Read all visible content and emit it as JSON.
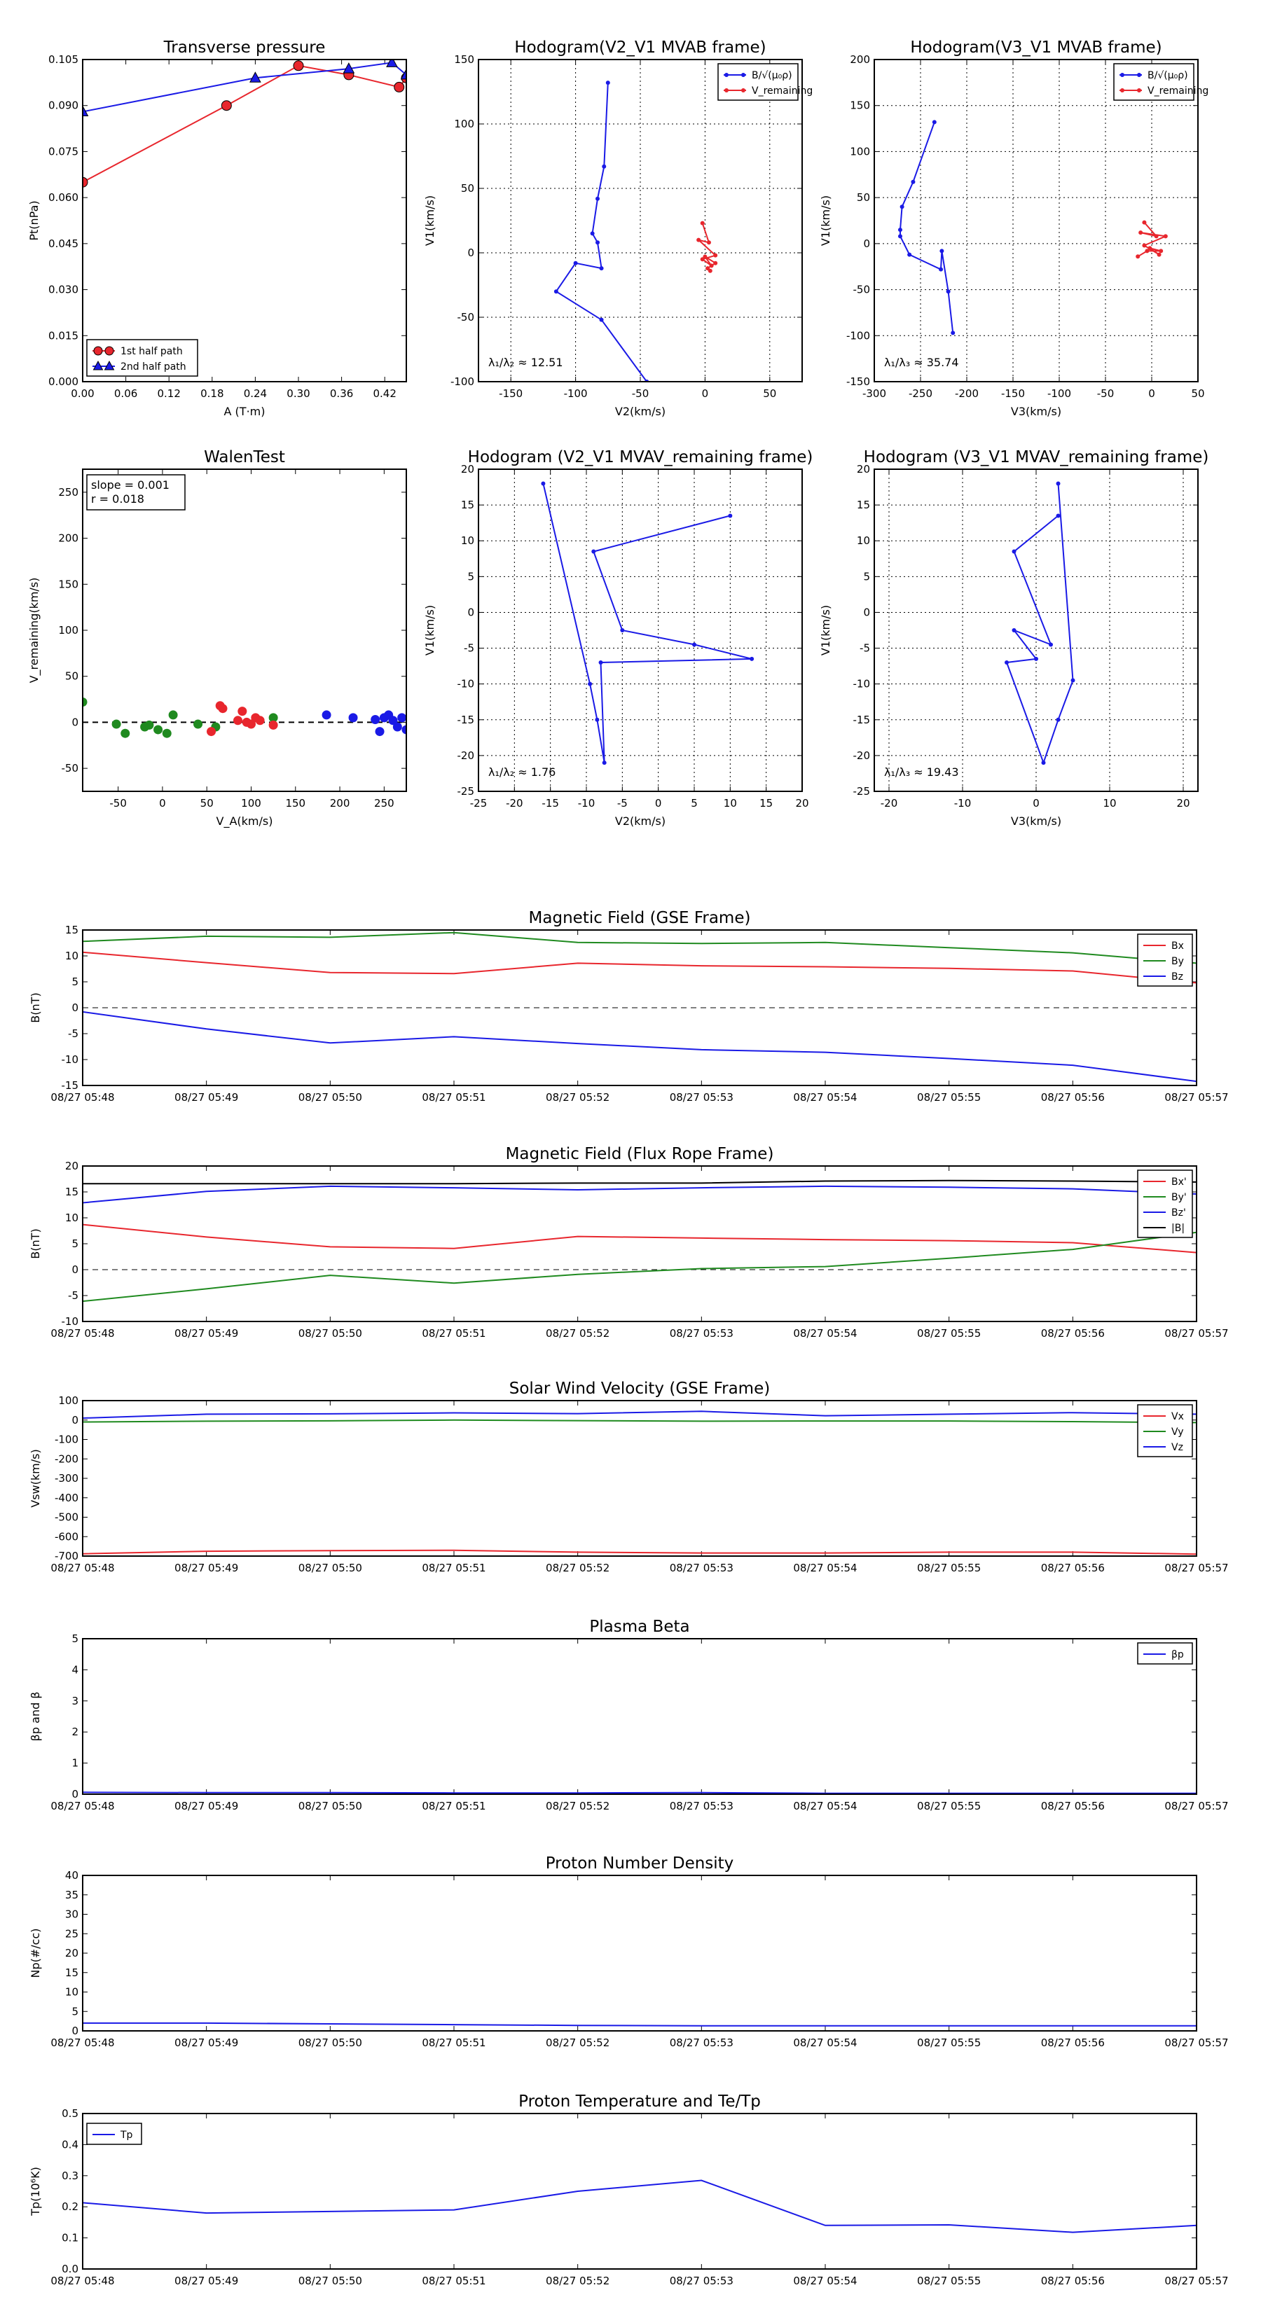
{
  "colors": {
    "red": "#e8262d",
    "blue": "#1a1ae6",
    "green": "#1f8a1f",
    "black": "#000000",
    "grid": "#000000"
  },
  "chart_data": [
    {
      "id": "transverse",
      "type": "line",
      "title": "Transverse pressure",
      "xlabel": "A (T·m)",
      "ylabel": "Pt(nPa)",
      "xlim": [
        0.0,
        0.45
      ],
      "ylim": [
        0.0,
        0.105
      ],
      "xticks": [
        0.0,
        0.06,
        0.12,
        0.18,
        0.24,
        0.3,
        0.36,
        0.42
      ],
      "xtick_labels": [
        "0.00",
        "0.06",
        "0.12",
        "0.18",
        "0.24",
        "0.30",
        "0.36",
        "0.42"
      ],
      "yticks": [
        0.0,
        0.015,
        0.03,
        0.045,
        0.06,
        0.075,
        0.09,
        0.105
      ],
      "ytick_labels": [
        "0.000",
        "0.015",
        "0.030",
        "0.045",
        "0.060",
        "0.075",
        "0.090",
        "0.105"
      ],
      "legend": {
        "position": "bottom-left"
      },
      "series": [
        {
          "name": "1st half path",
          "color": "red",
          "marker": "circle",
          "x": [
            0.0,
            0.2,
            0.3,
            0.37,
            0.44,
            0.45
          ],
          "y": [
            0.065,
            0.09,
            0.103,
            0.1,
            0.096,
            0.099
          ]
        },
        {
          "name": "2nd half path",
          "color": "blue",
          "marker": "triangle",
          "x": [
            0.0,
            0.24,
            0.37,
            0.43,
            0.45
          ],
          "y": [
            0.088,
            0.099,
            0.102,
            0.104,
            0.1
          ]
        }
      ]
    },
    {
      "id": "hodo1",
      "type": "line",
      "title": "Hodogram(V2_V1 MVAB frame)",
      "xlabel": "V2(km/s)",
      "ylabel": "V1(km/s)",
      "xlim": [
        -175,
        75
      ],
      "ylim": [
        -100,
        150
      ],
      "xticks": [
        -150,
        -100,
        -50,
        0,
        50
      ],
      "yticks": [
        -100,
        -50,
        0,
        50,
        100,
        150
      ],
      "grid": true,
      "annotation": "λ₁/λ₂ ≈ 12.51",
      "legend": {
        "position": "top-right"
      },
      "series": [
        {
          "name": "B/√(μ₀ρ)",
          "color": "blue",
          "x": [
            -75,
            -78,
            -83,
            -87,
            -83,
            -80,
            -100,
            -115,
            -80,
            -45
          ],
          "y": [
            132,
            67,
            42,
            15,
            8,
            -12,
            -8,
            -30,
            -52,
            -100
          ]
        },
        {
          "name": "V_remaining",
          "color": "red",
          "x": [
            -2,
            3,
            -5,
            8,
            -2,
            5,
            0,
            8,
            2,
            4
          ],
          "y": [
            23,
            8,
            10,
            -2,
            -5,
            -10,
            -3,
            -8,
            -12,
            -14
          ]
        }
      ]
    },
    {
      "id": "hodo2",
      "type": "line",
      "title": "Hodogram(V3_V1 MVAB frame)",
      "xlabel": "V3(km/s)",
      "ylabel": "V1(km/s)",
      "xlim": [
        -300,
        50
      ],
      "ylim": [
        -150,
        200
      ],
      "xticks": [
        -300,
        -250,
        -200,
        -150,
        -100,
        -50,
        0,
        50
      ],
      "yticks": [
        -150,
        -100,
        -50,
        0,
        50,
        100,
        150,
        200
      ],
      "grid": true,
      "annotation": "λ₁/λ₃ ≈ 35.74",
      "legend": {
        "position": "top-right"
      },
      "series": [
        {
          "name": "B/√(μ₀ρ)",
          "color": "blue",
          "x": [
            -235,
            -258,
            -270,
            -272,
            -272,
            -262,
            -228,
            -227,
            -220,
            -215
          ],
          "y": [
            132,
            67,
            40,
            15,
            8,
            -12,
            -28,
            -8,
            -52,
            -97
          ]
        },
        {
          "name": "V_remaining",
          "color": "red",
          "x": [
            -8,
            5,
            -12,
            15,
            -8,
            8,
            -2,
            10,
            -5,
            -15
          ],
          "y": [
            23,
            8,
            12,
            8,
            -2,
            -12,
            -5,
            -8,
            -8,
            -14
          ]
        }
      ]
    },
    {
      "id": "walen",
      "type": "scatter",
      "title": "WalenTest",
      "xlabel": "V_A(km/s)",
      "ylabel": "V_remaining(km/s)",
      "xlim": [
        -90,
        275
      ],
      "ylim": [
        -75,
        275
      ],
      "xticks": [
        -50,
        0,
        50,
        100,
        150,
        200,
        250
      ],
      "yticks": [
        -50,
        0,
        50,
        100,
        150,
        200,
        250
      ],
      "annotation_lines": [
        "slope = 0.001",
        "r = 0.018"
      ],
      "series": [
        {
          "name": "green",
          "color": "green",
          "x": [
            -90,
            -52,
            -42,
            -20,
            -15,
            -5,
            5,
            12,
            40,
            60,
            125
          ],
          "y": [
            22,
            -2,
            -12,
            -5,
            -3,
            -8,
            -12,
            8,
            -2,
            -5,
            5
          ]
        },
        {
          "name": "red",
          "color": "red",
          "x": [
            55,
            65,
            68,
            85,
            90,
            95,
            100,
            105,
            110,
            125
          ],
          "y": [
            -10,
            18,
            15,
            2,
            12,
            0,
            -2,
            5,
            2,
            -3
          ]
        },
        {
          "name": "blue",
          "color": "blue",
          "x": [
            185,
            215,
            240,
            245,
            250,
            255,
            260,
            265,
            270,
            275
          ],
          "y": [
            8,
            5,
            3,
            -10,
            5,
            8,
            2,
            -5,
            5,
            -8
          ]
        }
      ],
      "reference_line": 0
    },
    {
      "id": "hodo3",
      "type": "line",
      "title": "Hodogram (V2_V1 MVAV_remaining frame)",
      "xlabel": "V2(km/s)",
      "ylabel": "V1(km/s)",
      "xlim": [
        -25,
        20
      ],
      "ylim": [
        -25,
        20
      ],
      "xticks": [
        -25,
        -20,
        -15,
        -10,
        -5,
        0,
        5,
        10,
        15,
        20
      ],
      "yticks": [
        -25,
        -20,
        -15,
        -10,
        -5,
        0,
        5,
        10,
        15,
        20
      ],
      "grid": true,
      "annotation": "λ₁/λ₂ ≈ 1.76",
      "series": [
        {
          "name": "path",
          "color": "blue",
          "x": [
            -16,
            -9.5,
            -8.5,
            -7.5,
            -8,
            13,
            5,
            -5,
            -9,
            10
          ],
          "y": [
            18,
            -10,
            -15,
            -21,
            -7,
            -6.5,
            -4.5,
            -2.5,
            8.5,
            13.5
          ]
        }
      ]
    },
    {
      "id": "hodo4",
      "type": "line",
      "title": "Hodogram (V3_V1 MVAV_remaining frame)",
      "xlabel": "V3(km/s)",
      "ylabel": "V1(km/s)",
      "xlim": [
        -22,
        22
      ],
      "ylim": [
        -25,
        20
      ],
      "xticks": [
        -20,
        -10,
        0,
        10,
        20
      ],
      "yticks": [
        -25,
        -20,
        -15,
        -10,
        -5,
        0,
        5,
        10,
        15,
        20
      ],
      "grid": true,
      "annotation": "λ₁/λ₃ ≈ 19.43",
      "series": [
        {
          "name": "path",
          "color": "blue",
          "x": [
            3,
            5,
            3,
            1,
            -4,
            0,
            -3,
            2,
            -3,
            3
          ],
          "y": [
            18,
            -9.5,
            -15,
            -21,
            -7,
            -6.5,
            -2.5,
            -4.5,
            8.5,
            13.5
          ]
        }
      ]
    },
    {
      "id": "mag_gse",
      "type": "line",
      "title": "Magnetic Field (GSE Frame)",
      "ylabel": "B(nT)",
      "ylim": [
        -15,
        15
      ],
      "yticks": [
        -15,
        -10,
        -5,
        0,
        5,
        10,
        15
      ],
      "xtick_labels": [
        "08/27 05:48",
        "08/27 05:49",
        "08/27 05:50",
        "08/27 05:51",
        "08/27 05:52",
        "08/27 05:53",
        "08/27 05:54",
        "08/27 05:55",
        "08/27 05:56",
        "08/27 05:57"
      ],
      "reference_line": 0,
      "legend": {
        "position": "top-right"
      },
      "series": [
        {
          "name": "Bx",
          "color": "red",
          "y": [
            10.7,
            8.7,
            6.8,
            6.6,
            8.6,
            8.1,
            7.9,
            7.6,
            7.1,
            4.8
          ]
        },
        {
          "name": "By",
          "color": "green",
          "y": [
            12.8,
            13.8,
            13.6,
            14.5,
            12.6,
            12.4,
            12.6,
            11.6,
            10.6,
            8.6
          ]
        },
        {
          "name": "Bz",
          "color": "blue",
          "y": [
            -0.8,
            -4.1,
            -6.8,
            -5.6,
            -6.9,
            -8.1,
            -8.6,
            -9.8,
            -11.1,
            -14.2
          ]
        }
      ]
    },
    {
      "id": "mag_fr",
      "type": "line",
      "title": "Magnetic Field (Flux Rope Frame)",
      "ylabel": "B(nT)",
      "ylim": [
        -10,
        20
      ],
      "yticks": [
        -10,
        -5,
        0,
        5,
        10,
        15,
        20
      ],
      "xtick_labels": [
        "08/27 05:48",
        "08/27 05:49",
        "08/27 05:50",
        "08/27 05:51",
        "08/27 05:52",
        "08/27 05:53",
        "08/27 05:54",
        "08/27 05:55",
        "08/27 05:56",
        "08/27 05:57"
      ],
      "reference_line": 0,
      "legend": {
        "position": "top-right"
      },
      "series": [
        {
          "name": "Bx'",
          "color": "red",
          "y": [
            8.7,
            6.3,
            4.4,
            4.1,
            6.4,
            6.1,
            5.8,
            5.6,
            5.2,
            3.3
          ]
        },
        {
          "name": "By'",
          "color": "green",
          "y": [
            -6.1,
            -3.7,
            -1.1,
            -2.6,
            -0.9,
            0.2,
            0.6,
            2.2,
            3.9,
            7.2
          ]
        },
        {
          "name": "Bz'",
          "color": "blue",
          "y": [
            12.9,
            15.1,
            16.1,
            15.8,
            15.4,
            15.8,
            16.1,
            15.9,
            15.6,
            14.6
          ]
        },
        {
          "name": "|B|",
          "color": "black",
          "y": [
            16.6,
            16.6,
            16.6,
            16.6,
            16.7,
            16.7,
            17.1,
            17.2,
            17.1,
            16.9
          ]
        }
      ]
    },
    {
      "id": "vsw",
      "type": "line",
      "title": "Solar Wind Velocity (GSE Frame)",
      "ylabel": "Vsw(km/s)",
      "ylim": [
        -700,
        100
      ],
      "yticks": [
        -700,
        -600,
        -500,
        -400,
        -300,
        -200,
        -100,
        0,
        100
      ],
      "xtick_labels": [
        "08/27 05:48",
        "08/27 05:49",
        "08/27 05:50",
        "08/27 05:51",
        "08/27 05:52",
        "08/27 05:53",
        "08/27 05:54",
        "08/27 05:55",
        "08/27 05:56",
        "08/27 05:57"
      ],
      "legend": {
        "position": "top-right"
      },
      "series": [
        {
          "name": "Vx",
          "color": "red",
          "y": [
            -688,
            -675,
            -672,
            -670,
            -680,
            -684,
            -684,
            -680,
            -680,
            -690
          ]
        },
        {
          "name": "Vy",
          "color": "green",
          "y": [
            -10,
            -6,
            -4,
            0,
            -3,
            -6,
            -5,
            -5,
            -8,
            -13
          ]
        },
        {
          "name": "Vz",
          "color": "blue",
          "y": [
            10,
            30,
            32,
            37,
            33,
            45,
            22,
            30,
            38,
            30
          ]
        }
      ]
    },
    {
      "id": "beta",
      "type": "line",
      "title": "Plasma Beta",
      "ylabel": "βp and β",
      "ylim": [
        0,
        5
      ],
      "yticks": [
        0,
        1,
        2,
        3,
        4,
        5
      ],
      "xtick_labels": [
        "08/27 05:48",
        "08/27 05:49",
        "08/27 05:50",
        "08/27 05:51",
        "08/27 05:52",
        "08/27 05:53",
        "08/27 05:54",
        "08/27 05:55",
        "08/27 05:56",
        "08/27 05:57"
      ],
      "legend": {
        "position": "top-right"
      },
      "series": [
        {
          "name": "βp",
          "color": "blue",
          "y": [
            0.06,
            0.05,
            0.05,
            0.04,
            0.04,
            0.05,
            0.03,
            0.03,
            0.03,
            0.03
          ]
        }
      ]
    },
    {
      "id": "np",
      "type": "line",
      "title": "Proton Number Density",
      "ylabel": "Np(#/cc)",
      "ylim": [
        0,
        40
      ],
      "yticks": [
        0,
        5,
        10,
        15,
        20,
        25,
        30,
        35,
        40
      ],
      "xtick_labels": [
        "08/27 05:48",
        "08/27 05:49",
        "08/27 05:50",
        "08/27 05:51",
        "08/27 05:52",
        "08/27 05:53",
        "08/27 05:54",
        "08/27 05:55",
        "08/27 05:56",
        "08/27 05:57"
      ],
      "series": [
        {
          "name": "Np",
          "color": "blue",
          "y": [
            2.0,
            2.0,
            1.8,
            1.6,
            1.4,
            1.3,
            1.3,
            1.3,
            1.3,
            1.3
          ]
        }
      ]
    },
    {
      "id": "tp",
      "type": "line",
      "title": "Proton Temperature and Te/Tp",
      "ylabel": "Tp(10⁶K)",
      "ylim": [
        0,
        0.5
      ],
      "yticks": [
        0.0,
        0.1,
        0.2,
        0.3,
        0.4,
        0.5
      ],
      "ytick_labels": [
        "0.0",
        "0.1",
        "0.2",
        "0.3",
        "0.4",
        "0.5"
      ],
      "xtick_labels": [
        "08/27 05:48",
        "08/27 05:49",
        "08/27 05:50",
        "08/27 05:51",
        "08/27 05:52",
        "08/27 05:53",
        "08/27 05:54",
        "08/27 05:55",
        "08/27 05:56",
        "08/27 05:57"
      ],
      "legend": {
        "position": "top-left"
      },
      "series": [
        {
          "name": "Tp",
          "color": "blue",
          "y": [
            0.213,
            0.18,
            0.185,
            0.19,
            0.25,
            0.285,
            0.14,
            0.142,
            0.118,
            0.14
          ]
        }
      ]
    }
  ]
}
